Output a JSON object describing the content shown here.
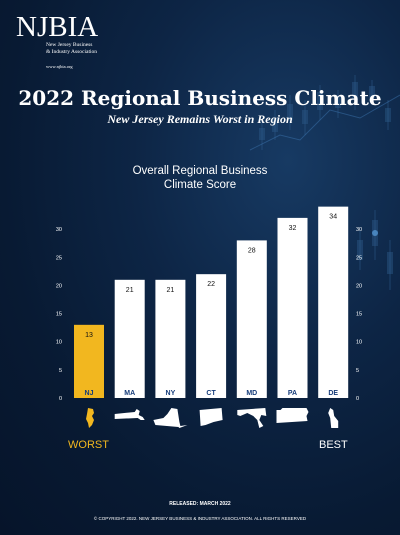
{
  "logo": {
    "mark": "NJBIA",
    "line1": "New Jersey Business",
    "line2": "& Industry Association",
    "url": "www.njbia.org"
  },
  "header": {
    "title": "2022 Regional Business Climate",
    "subtitle": "New Jersey Remains Worst in Region"
  },
  "chart_data": {
    "type": "bar",
    "title_line1": "Overall Regional Business",
    "title_line2": "Climate Score",
    "categories": [
      "NJ",
      "MA",
      "NY",
      "CT",
      "MD",
      "PA",
      "DE"
    ],
    "values": [
      13,
      21,
      21,
      22,
      28,
      32,
      34
    ],
    "yticks": [
      0,
      5,
      10,
      15,
      20,
      25,
      30
    ],
    "ylim": [
      0,
      35
    ],
    "highlight_color": "#f2b71f",
    "bar_color": "#ffffff",
    "grid": false
  },
  "labels": {
    "worst": "WORST",
    "best": "BEST"
  },
  "colors": {
    "accent": "#f2b71f",
    "label_blue": "#163c7a",
    "background": "#081a33"
  },
  "footer": {
    "released": "RELEASED: MARCH 2022",
    "copyright": "© COPYRIGHT 2022. NEW JERSEY BUSINESS & INDUSTRY ASSOCIATION. ALL RIGHTS RESERVED"
  }
}
